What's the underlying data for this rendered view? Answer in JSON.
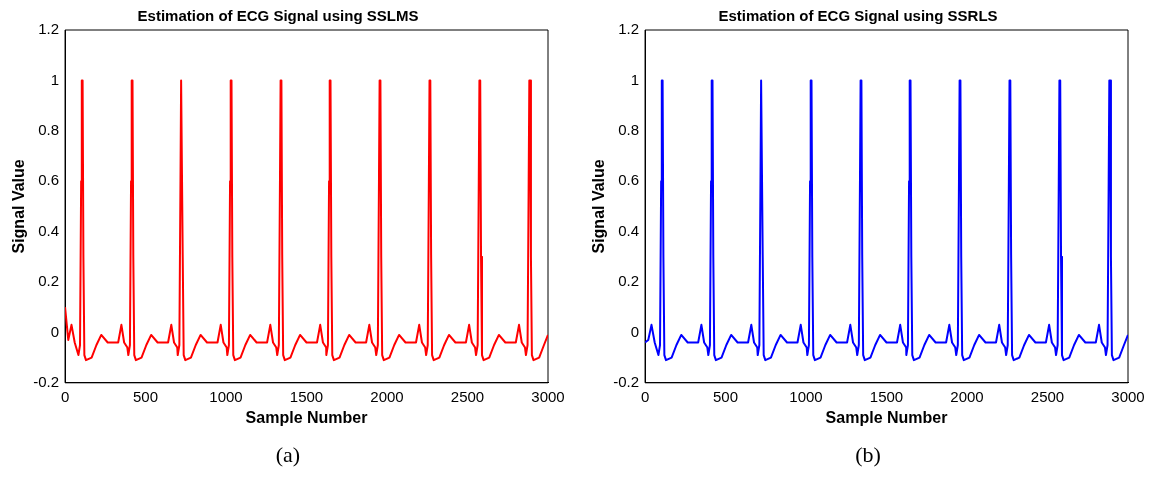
{
  "chart_data": [
    {
      "type": "line",
      "title": "Estimation of ECG Signal using SSLMS",
      "xlabel": "Sample Number",
      "ylabel": "Signal Value",
      "annotations": [
        "(a)"
      ],
      "xlim": [
        0,
        3000
      ],
      "ylim": [
        -0.2,
        1.2
      ],
      "xticks": [
        0,
        500,
        1000,
        1500,
        2000,
        2500,
        3000
      ],
      "yticks": [
        -0.2,
        0,
        0.2,
        0.4,
        0.6,
        0.8,
        1,
        1.2
      ],
      "x": [
        0,
        20,
        40,
        60,
        83,
        93,
        100,
        104,
        109,
        114,
        120,
        130,
        165,
        195,
        225,
        265,
        330,
        350,
        367,
        387,
        393,
        403,
        410,
        414,
        419,
        424,
        430,
        440,
        475,
        505,
        535,
        575,
        640,
        660,
        677,
        697,
        700,
        710,
        717,
        721,
        726,
        731,
        737,
        747,
        782,
        812,
        842,
        882,
        947,
        967,
        984,
        1004,
        1008,
        1018,
        1025,
        1029,
        1034,
        1039,
        1045,
        1055,
        1090,
        1120,
        1150,
        1190,
        1255,
        1275,
        1292,
        1312,
        1318,
        1328,
        1335,
        1339,
        1344,
        1349,
        1355,
        1365,
        1400,
        1430,
        1460,
        1500,
        1565,
        1585,
        1602,
        1622,
        1623,
        1633,
        1640,
        1644,
        1649,
        1654,
        1660,
        1670,
        1705,
        1735,
        1765,
        1805,
        1870,
        1890,
        1907,
        1927,
        1933,
        1943,
        1950,
        1954,
        1959,
        1964,
        1970,
        1980,
        2015,
        2045,
        2075,
        2115,
        2180,
        2200,
        2217,
        2237,
        2243,
        2253,
        2260,
        2264,
        2269,
        2274,
        2280,
        2290,
        2325,
        2355,
        2385,
        2425,
        2490,
        2510,
        2527,
        2547,
        2553,
        2563,
        2570,
        2574,
        2579,
        2584,
        2590,
        2600,
        2635,
        2665,
        2695,
        2735,
        2800,
        2820,
        2837,
        2857,
        2863,
        2873,
        2880,
        2884,
        2889,
        2894,
        2900,
        2910,
        2945,
        2975,
        3000
      ],
      "series": [
        {
          "color": "#ff0000",
          "values": [
            0.1,
            -0.03,
            0.03,
            -0.04,
            -0.09,
            -0.05,
            0.6,
            1,
            1,
            0.3,
            -0.09,
            -0.11,
            -0.1,
            -0.05,
            -0.01,
            -0.04,
            -0.04,
            0.03,
            -0.04,
            -0.06,
            -0.09,
            -0.05,
            0.6,
            1,
            1,
            0.3,
            -0.09,
            -0.11,
            -0.1,
            -0.05,
            -0.01,
            -0.04,
            -0.04,
            0.03,
            -0.04,
            -0.06,
            -0.09,
            -0.05,
            0.6,
            1,
            1,
            0.3,
            -0.09,
            -0.11,
            -0.1,
            -0.05,
            -0.01,
            -0.04,
            -0.04,
            0.03,
            -0.04,
            -0.06,
            -0.09,
            -0.05,
            0.6,
            1,
            1,
            0.3,
            -0.09,
            -0.11,
            -0.1,
            -0.05,
            -0.01,
            -0.04,
            -0.04,
            0.03,
            -0.04,
            -0.06,
            -0.09,
            -0.05,
            0.6,
            1,
            1,
            0.3,
            -0.09,
            -0.11,
            -0.1,
            -0.05,
            -0.01,
            -0.04,
            -0.04,
            0.03,
            -0.04,
            -0.06,
            -0.09,
            -0.05,
            0.6,
            1,
            1,
            0.3,
            -0.09,
            -0.11,
            -0.1,
            -0.05,
            -0.01,
            -0.04,
            -0.04,
            0.03,
            -0.04,
            -0.06,
            -0.09,
            -0.05,
            0.6,
            1,
            1,
            0.3,
            -0.09,
            -0.11,
            -0.1,
            -0.05,
            -0.01,
            -0.04,
            -0.04,
            0.03,
            -0.04,
            -0.06,
            -0.09,
            -0.05,
            0.6,
            1,
            1,
            0.3,
            -0.09,
            -0.11,
            -0.1,
            -0.05,
            -0.01,
            -0.04,
            -0.04,
            0.03,
            -0.04,
            -0.06,
            -0.09,
            -0.05,
            0.6,
            1,
            1,
            0.3,
            -0.09,
            -0.11,
            -0.1,
            -0.05,
            -0.01,
            -0.04,
            -0.04,
            0.03,
            -0.04,
            -0.06,
            -0.09,
            -0.05,
            0.6,
            1,
            1,
            0.3,
            -0.09,
            -0.11,
            -0.1,
            -0.05,
            -0.01
          ]
        }
      ]
    },
    {
      "type": "line",
      "title": "Estimation of ECG Signal using SSRLS",
      "xlabel": "Sample Number",
      "ylabel": "Signal Value",
      "annotations": [
        "(b)"
      ],
      "xlim": [
        0,
        3000
      ],
      "ylim": [
        -0.2,
        1.2
      ],
      "xticks": [
        0,
        500,
        1000,
        1500,
        2000,
        2500,
        3000
      ],
      "yticks": [
        -0.2,
        0,
        0.2,
        0.4,
        0.6,
        0.8,
        1,
        1.2
      ],
      "x": [
        0,
        20,
        40,
        60,
        83,
        93,
        100,
        104,
        109,
        114,
        120,
        130,
        165,
        195,
        225,
        265,
        330,
        350,
        367,
        387,
        393,
        403,
        410,
        414,
        419,
        424,
        430,
        440,
        475,
        505,
        535,
        575,
        640,
        660,
        677,
        697,
        700,
        710,
        717,
        721,
        726,
        731,
        737,
        747,
        782,
        812,
        842,
        882,
        947,
        967,
        984,
        1004,
        1008,
        1018,
        1025,
        1029,
        1034,
        1039,
        1045,
        1055,
        1090,
        1120,
        1150,
        1190,
        1255,
        1275,
        1292,
        1312,
        1318,
        1328,
        1335,
        1339,
        1344,
        1349,
        1355,
        1365,
        1400,
        1430,
        1460,
        1500,
        1565,
        1585,
        1602,
        1622,
        1623,
        1633,
        1640,
        1644,
        1649,
        1654,
        1660,
        1670,
        1705,
        1735,
        1765,
        1805,
        1870,
        1890,
        1907,
        1927,
        1933,
        1943,
        1950,
        1954,
        1959,
        1964,
        1970,
        1980,
        2015,
        2045,
        2075,
        2115,
        2180,
        2200,
        2217,
        2237,
        2243,
        2253,
        2260,
        2264,
        2269,
        2274,
        2280,
        2290,
        2325,
        2355,
        2385,
        2425,
        2490,
        2510,
        2527,
        2547,
        2553,
        2563,
        2570,
        2574,
        2579,
        2584,
        2590,
        2600,
        2635,
        2665,
        2695,
        2735,
        2800,
        2820,
        2837,
        2857,
        2863,
        2873,
        2880,
        2884,
        2889,
        2894,
        2900,
        2910,
        2945,
        2975,
        3000
      ],
      "series": [
        {
          "color": "#0000ff",
          "values": [
            -0.04,
            -0.03,
            0.03,
            -0.04,
            -0.09,
            -0.05,
            0.6,
            1,
            1,
            0.3,
            -0.09,
            -0.11,
            -0.1,
            -0.05,
            -0.01,
            -0.04,
            -0.04,
            0.03,
            -0.04,
            -0.06,
            -0.09,
            -0.05,
            0.6,
            1,
            1,
            0.3,
            -0.09,
            -0.11,
            -0.1,
            -0.05,
            -0.01,
            -0.04,
            -0.04,
            0.03,
            -0.04,
            -0.06,
            -0.09,
            -0.05,
            0.6,
            1,
            1,
            0.3,
            -0.09,
            -0.11,
            -0.1,
            -0.05,
            -0.01,
            -0.04,
            -0.04,
            0.03,
            -0.04,
            -0.06,
            -0.09,
            -0.05,
            0.6,
            1,
            1,
            0.3,
            -0.09,
            -0.11,
            -0.1,
            -0.05,
            -0.01,
            -0.04,
            -0.04,
            0.03,
            -0.04,
            -0.06,
            -0.09,
            -0.05,
            0.6,
            1,
            1,
            0.3,
            -0.09,
            -0.11,
            -0.1,
            -0.05,
            -0.01,
            -0.04,
            -0.04,
            0.03,
            -0.04,
            -0.06,
            -0.09,
            -0.05,
            0.6,
            1,
            1,
            0.3,
            -0.09,
            -0.11,
            -0.1,
            -0.05,
            -0.01,
            -0.04,
            -0.04,
            0.03,
            -0.04,
            -0.06,
            -0.09,
            -0.05,
            0.6,
            1,
            1,
            0.3,
            -0.09,
            -0.11,
            -0.1,
            -0.05,
            -0.01,
            -0.04,
            -0.04,
            0.03,
            -0.04,
            -0.06,
            -0.09,
            -0.05,
            0.6,
            1,
            1,
            0.3,
            -0.09,
            -0.11,
            -0.1,
            -0.05,
            -0.01,
            -0.04,
            -0.04,
            0.03,
            -0.04,
            -0.06,
            -0.09,
            -0.05,
            0.6,
            1,
            1,
            0.3,
            -0.09,
            -0.11,
            -0.1,
            -0.05,
            -0.01,
            -0.04,
            -0.04,
            0.03,
            -0.04,
            -0.06,
            -0.09,
            -0.05,
            0.6,
            1,
            1,
            0.3,
            -0.09,
            -0.11,
            -0.1,
            -0.05,
            -0.01
          ]
        }
      ]
    }
  ]
}
